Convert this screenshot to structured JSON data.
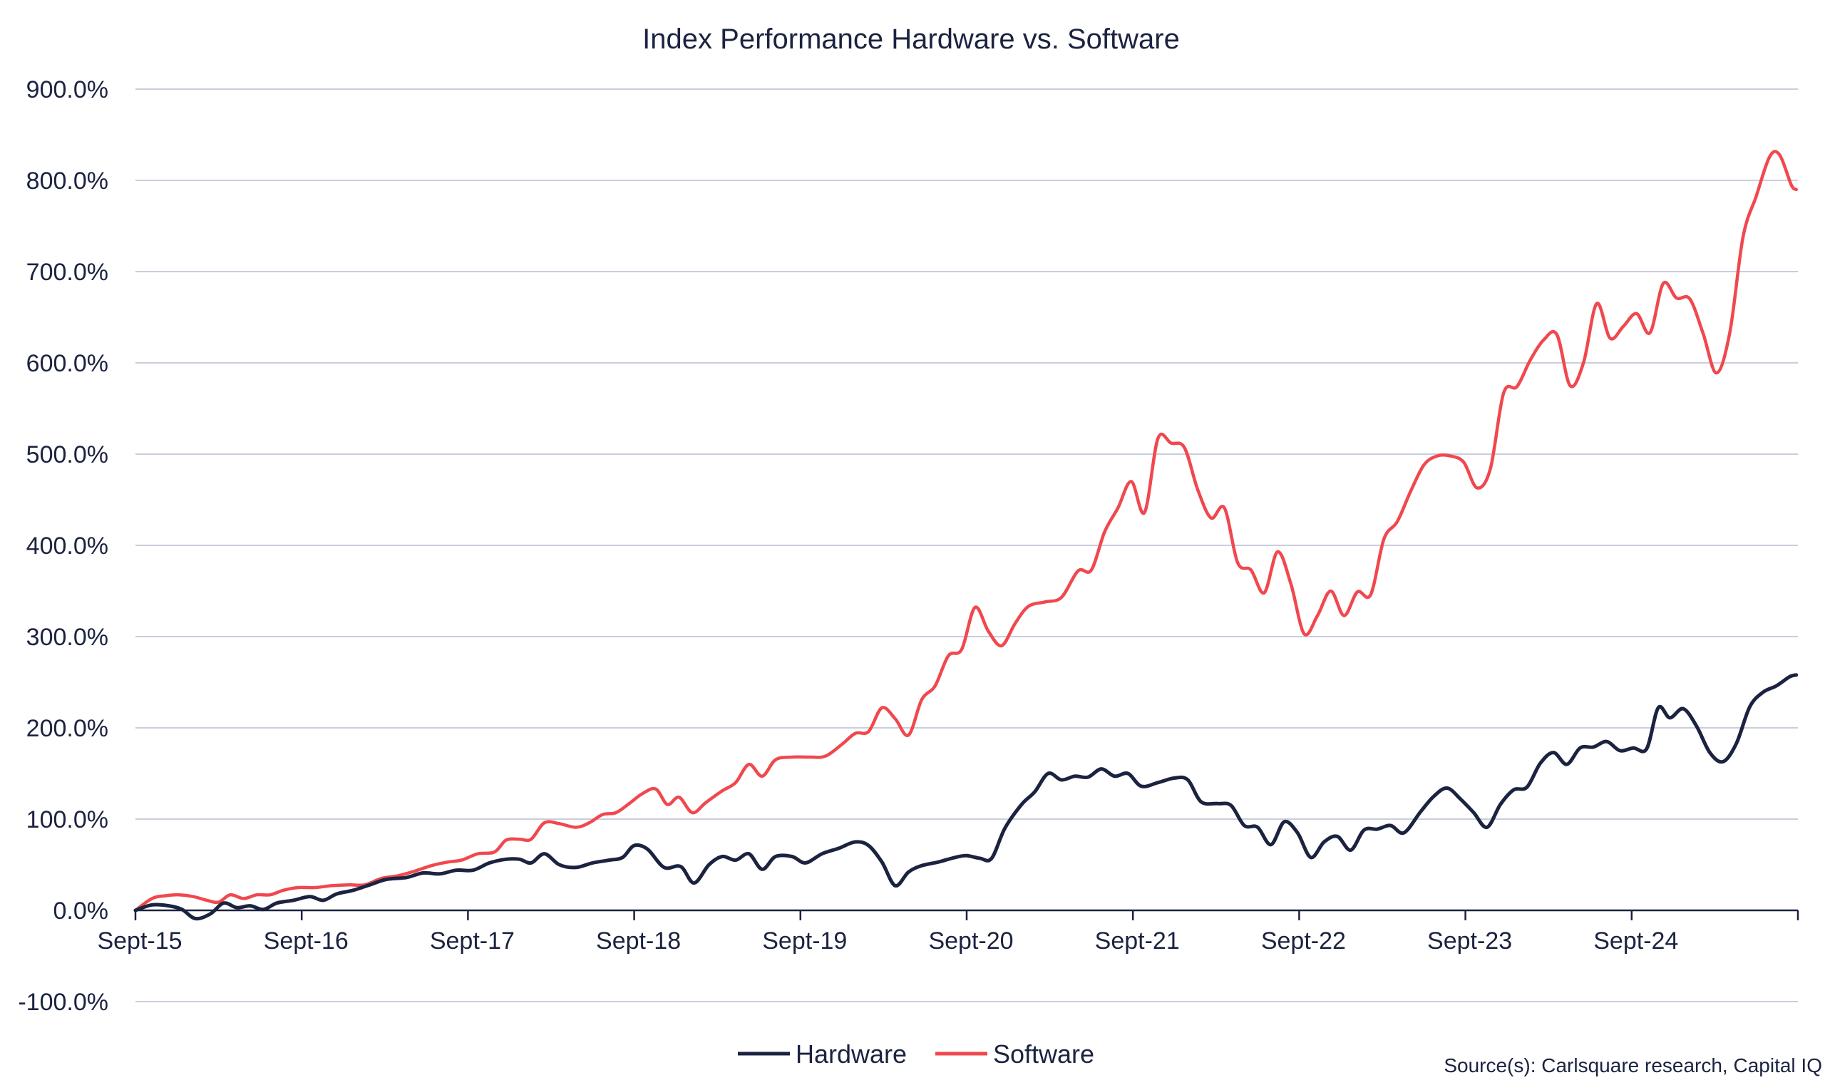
{
  "chart_data": {
    "type": "line",
    "title": "Index Performance Hardware vs. Software",
    "xlabel": "",
    "ylabel": "",
    "source": "Source(s): Carlsquare research, Capital IQ",
    "x_ticks": [
      "Sept-15",
      "Sept-16",
      "Sept-17",
      "Sept-18",
      "Sept-19",
      "Sept-20",
      "Sept-21",
      "Sept-22",
      "Sept-23",
      "Sept-24"
    ],
    "y_ticks": [
      "-100.0%",
      "0.0%",
      "100.0%",
      "200.0%",
      "300.0%",
      "400.0%",
      "500.0%",
      "600.0%",
      "700.0%",
      "800.0%",
      "900.0%"
    ],
    "ylim": [
      -100,
      900
    ],
    "xlim": [
      2015.67,
      2025.67
    ],
    "grid": "horizontal",
    "legend": "bottom-center",
    "colors": {
      "hardware": "#1b2340",
      "software": "#f0484e",
      "grid": "#c9cedd"
    },
    "series": [
      {
        "name": "Hardware",
        "color": "#1b2340",
        "points": [
          [
            2015.67,
            0
          ],
          [
            2015.77,
            6
          ],
          [
            2015.87,
            5
          ],
          [
            2015.95,
            1
          ],
          [
            2016.03,
            -9
          ],
          [
            2016.12,
            -4
          ],
          [
            2016.2,
            8
          ],
          [
            2016.28,
            3
          ],
          [
            2016.36,
            5
          ],
          [
            2016.44,
            1
          ],
          [
            2016.52,
            8
          ],
          [
            2016.62,
            11
          ],
          [
            2016.72,
            15
          ],
          [
            2016.8,
            11
          ],
          [
            2016.88,
            18
          ],
          [
            2016.98,
            22
          ],
          [
            2017.08,
            28
          ],
          [
            2017.18,
            34
          ],
          [
            2017.3,
            36
          ],
          [
            2017.4,
            41
          ],
          [
            2017.5,
            40
          ],
          [
            2017.6,
            44
          ],
          [
            2017.7,
            44
          ],
          [
            2017.8,
            52
          ],
          [
            2017.9,
            56
          ],
          [
            2017.98,
            56
          ],
          [
            2018.05,
            52
          ],
          [
            2018.13,
            62
          ],
          [
            2018.22,
            50
          ],
          [
            2018.32,
            47
          ],
          [
            2018.42,
            52
          ],
          [
            2018.52,
            55
          ],
          [
            2018.6,
            58
          ],
          [
            2018.67,
            71
          ],
          [
            2018.75,
            67
          ],
          [
            2018.85,
            47
          ],
          [
            2018.95,
            48
          ],
          [
            2019.03,
            30
          ],
          [
            2019.12,
            50
          ],
          [
            2019.2,
            59
          ],
          [
            2019.28,
            55
          ],
          [
            2019.36,
            62
          ],
          [
            2019.44,
            45
          ],
          [
            2019.52,
            59
          ],
          [
            2019.62,
            59
          ],
          [
            2019.7,
            52
          ],
          [
            2019.8,
            62
          ],
          [
            2019.9,
            68
          ],
          [
            2020.0,
            75
          ],
          [
            2020.08,
            71
          ],
          [
            2020.16,
            53
          ],
          [
            2020.24,
            27
          ],
          [
            2020.32,
            42
          ],
          [
            2020.4,
            49
          ],
          [
            2020.5,
            53
          ],
          [
            2020.6,
            58
          ],
          [
            2020.67,
            60
          ],
          [
            2020.75,
            57
          ],
          [
            2020.82,
            57
          ],
          [
            2020.9,
            90
          ],
          [
            2021.0,
            116
          ],
          [
            2021.08,
            130
          ],
          [
            2021.16,
            150
          ],
          [
            2021.24,
            143
          ],
          [
            2021.32,
            147
          ],
          [
            2021.4,
            146
          ],
          [
            2021.48,
            155
          ],
          [
            2021.56,
            147
          ],
          [
            2021.64,
            150
          ],
          [
            2021.72,
            136
          ],
          [
            2021.82,
            140
          ],
          [
            2021.92,
            145
          ],
          [
            2022.0,
            143
          ],
          [
            2022.08,
            119
          ],
          [
            2022.18,
            117
          ],
          [
            2022.26,
            115
          ],
          [
            2022.34,
            93
          ],
          [
            2022.42,
            91
          ],
          [
            2022.5,
            72
          ],
          [
            2022.58,
            97
          ],
          [
            2022.66,
            85
          ],
          [
            2022.74,
            58
          ],
          [
            2022.82,
            75
          ],
          [
            2022.9,
            81
          ],
          [
            2022.98,
            66
          ],
          [
            2023.06,
            88
          ],
          [
            2023.14,
            89
          ],
          [
            2023.22,
            93
          ],
          [
            2023.3,
            85
          ],
          [
            2023.4,
            108
          ],
          [
            2023.48,
            125
          ],
          [
            2023.56,
            134
          ],
          [
            2023.64,
            122
          ],
          [
            2023.72,
            107
          ],
          [
            2023.8,
            91
          ],
          [
            2023.88,
            116
          ],
          [
            2023.96,
            132
          ],
          [
            2024.04,
            135
          ],
          [
            2024.12,
            161
          ],
          [
            2024.2,
            173
          ],
          [
            2024.28,
            160
          ],
          [
            2024.36,
            178
          ],
          [
            2024.44,
            179
          ],
          [
            2024.52,
            185
          ],
          [
            2024.6,
            175
          ],
          [
            2024.68,
            178
          ],
          [
            2024.76,
            177
          ],
          [
            2024.83,
            222
          ],
          [
            2024.9,
            211
          ],
          [
            2024.98,
            221
          ],
          [
            2025.06,
            202
          ],
          [
            2025.14,
            173
          ],
          [
            2025.22,
            163
          ],
          [
            2025.3,
            183
          ],
          [
            2025.38,
            223
          ],
          [
            2025.46,
            239
          ],
          [
            2025.54,
            246
          ],
          [
            2025.62,
            256
          ],
          [
            2025.66,
            258
          ]
        ]
      },
      {
        "name": "Software",
        "color": "#f0484e",
        "points": [
          [
            2015.67,
            0
          ],
          [
            2015.77,
            13
          ],
          [
            2015.85,
            16
          ],
          [
            2015.93,
            17
          ],
          [
            2016.02,
            15
          ],
          [
            2016.1,
            11
          ],
          [
            2016.17,
            9
          ],
          [
            2016.24,
            17
          ],
          [
            2016.32,
            13
          ],
          [
            2016.4,
            17
          ],
          [
            2016.48,
            17
          ],
          [
            2016.56,
            22
          ],
          [
            2016.65,
            25
          ],
          [
            2016.75,
            25
          ],
          [
            2016.85,
            27
          ],
          [
            2016.95,
            28
          ],
          [
            2017.05,
            28
          ],
          [
            2017.15,
            35
          ],
          [
            2017.25,
            38
          ],
          [
            2017.35,
            43
          ],
          [
            2017.45,
            49
          ],
          [
            2017.55,
            53
          ],
          [
            2017.63,
            55
          ],
          [
            2017.73,
            62
          ],
          [
            2017.83,
            64
          ],
          [
            2017.9,
            77
          ],
          [
            2017.98,
            78
          ],
          [
            2018.05,
            78
          ],
          [
            2018.13,
            96
          ],
          [
            2018.22,
            95
          ],
          [
            2018.32,
            91
          ],
          [
            2018.4,
            96
          ],
          [
            2018.48,
            105
          ],
          [
            2018.56,
            107
          ],
          [
            2018.64,
            117
          ],
          [
            2018.72,
            128
          ],
          [
            2018.8,
            133
          ],
          [
            2018.87,
            116
          ],
          [
            2018.94,
            124
          ],
          [
            2019.02,
            107
          ],
          [
            2019.1,
            118
          ],
          [
            2019.2,
            131
          ],
          [
            2019.28,
            140
          ],
          [
            2019.36,
            160
          ],
          [
            2019.44,
            147
          ],
          [
            2019.52,
            165
          ],
          [
            2019.62,
            168
          ],
          [
            2019.72,
            168
          ],
          [
            2019.82,
            169
          ],
          [
            2019.92,
            182
          ],
          [
            2020.0,
            194
          ],
          [
            2020.08,
            196
          ],
          [
            2020.16,
            222
          ],
          [
            2020.24,
            210
          ],
          [
            2020.32,
            192
          ],
          [
            2020.4,
            231
          ],
          [
            2020.48,
            246
          ],
          [
            2020.56,
            279
          ],
          [
            2020.64,
            286
          ],
          [
            2020.72,
            332
          ],
          [
            2020.8,
            306
          ],
          [
            2020.88,
            290
          ],
          [
            2020.96,
            314
          ],
          [
            2021.04,
            333
          ],
          [
            2021.14,
            338
          ],
          [
            2021.24,
            343
          ],
          [
            2021.34,
            372
          ],
          [
            2021.42,
            373
          ],
          [
            2021.5,
            415
          ],
          [
            2021.58,
            441
          ],
          [
            2021.66,
            470
          ],
          [
            2021.74,
            436
          ],
          [
            2021.82,
            517
          ],
          [
            2021.9,
            512
          ],
          [
            2021.98,
            507
          ],
          [
            2022.06,
            461
          ],
          [
            2022.14,
            430
          ],
          [
            2022.22,
            441
          ],
          [
            2022.3,
            381
          ],
          [
            2022.38,
            373
          ],
          [
            2022.46,
            348
          ],
          [
            2022.54,
            393
          ],
          [
            2022.62,
            358
          ],
          [
            2022.7,
            303
          ],
          [
            2022.78,
            323
          ],
          [
            2022.86,
            350
          ],
          [
            2022.94,
            323
          ],
          [
            2023.02,
            349
          ],
          [
            2023.1,
            346
          ],
          [
            2023.18,
            407
          ],
          [
            2023.26,
            426
          ],
          [
            2023.34,
            459
          ],
          [
            2023.42,
            488
          ],
          [
            2023.5,
            498
          ],
          [
            2023.58,
            498
          ],
          [
            2023.66,
            491
          ],
          [
            2023.74,
            463
          ],
          [
            2023.82,
            484
          ],
          [
            2023.9,
            567
          ],
          [
            2023.98,
            574
          ],
          [
            2024.06,
            603
          ],
          [
            2024.14,
            625
          ],
          [
            2024.22,
            631
          ],
          [
            2024.3,
            575
          ],
          [
            2024.38,
            600
          ],
          [
            2024.46,
            665
          ],
          [
            2024.54,
            627
          ],
          [
            2024.62,
            640
          ],
          [
            2024.7,
            654
          ],
          [
            2024.78,
            633
          ],
          [
            2024.86,
            687
          ],
          [
            2024.94,
            671
          ],
          [
            2025.02,
            670
          ],
          [
            2025.1,
            632
          ],
          [
            2025.18,
            589
          ],
          [
            2025.26,
            633
          ],
          [
            2025.34,
            738
          ],
          [
            2025.42,
            783
          ],
          [
            2025.5,
            826
          ],
          [
            2025.56,
            828
          ],
          [
            2025.63,
            795
          ],
          [
            2025.66,
            790
          ]
        ]
      }
    ]
  }
}
